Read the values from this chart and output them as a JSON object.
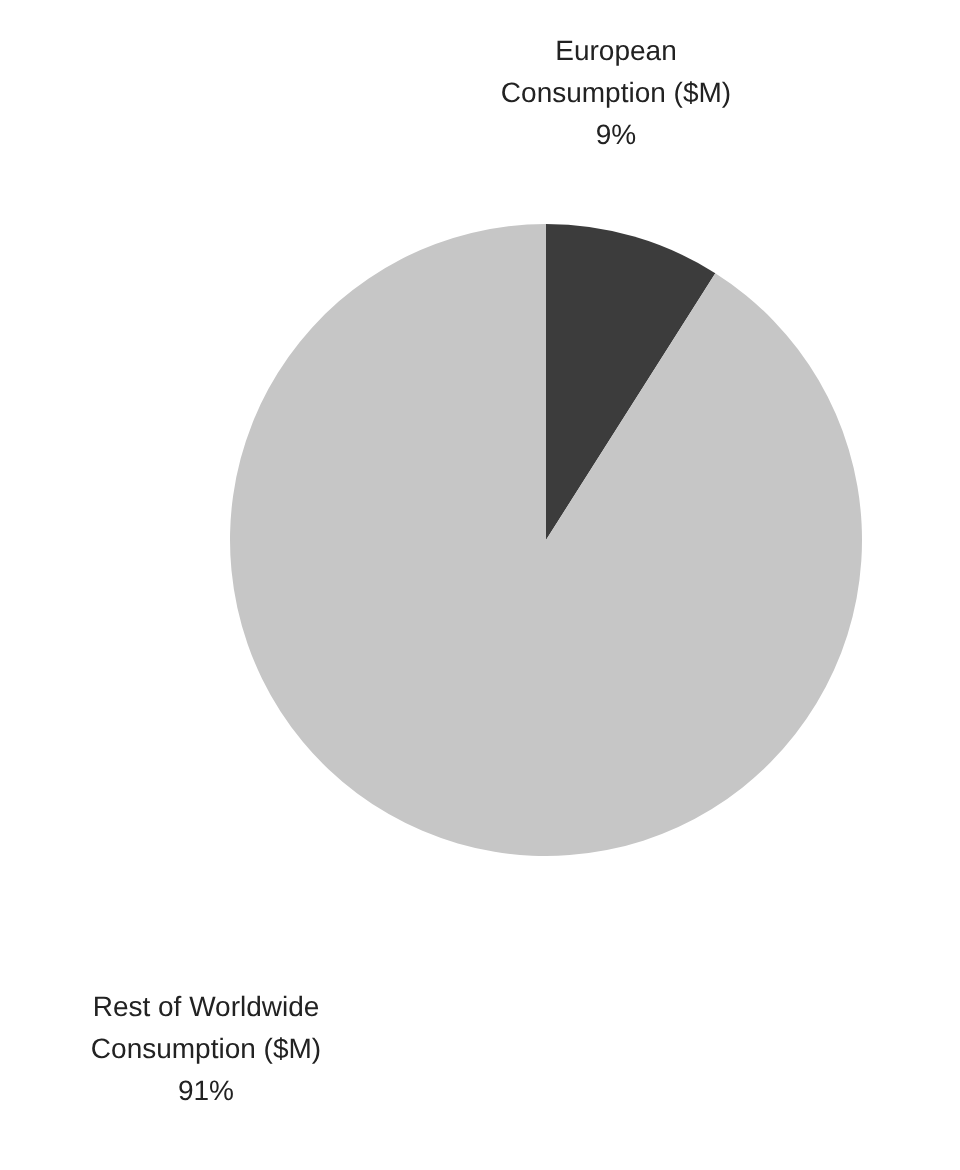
{
  "chart_data": {
    "type": "pie",
    "categories": [
      "European Consumption ($M)",
      "Rest of Worldwide Consumption ($M)"
    ],
    "values": [
      9,
      91
    ],
    "colors": [
      "#3c3c3c",
      "#c6c6c6"
    ],
    "value_labels": [
      "9%",
      "91%"
    ]
  }
}
